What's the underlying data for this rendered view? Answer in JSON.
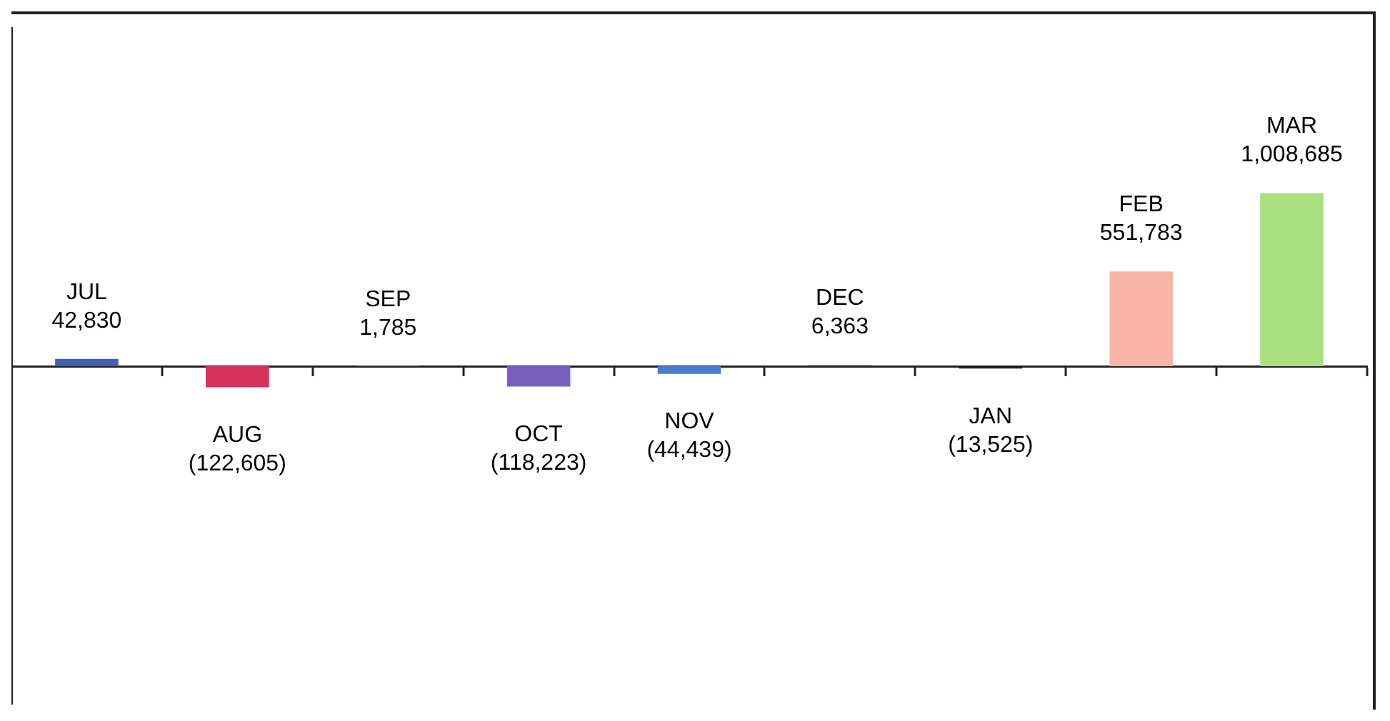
{
  "chart_data": {
    "type": "bar",
    "categories": [
      "JUL",
      "AUG",
      "SEP",
      "OCT",
      "NOV",
      "DEC",
      "JAN",
      "FEB",
      "MAR"
    ],
    "values": [
      42830,
      -122605,
      1785,
      -118223,
      -44439,
      6363,
      -13525,
      551783,
      1008685
    ],
    "value_labels": [
      "42,830",
      "(122,605)",
      "1,785",
      "(118,223)",
      "(44,439)",
      "6,363",
      "(13,525)",
      "551,783",
      "1,008,685"
    ],
    "colors": [
      "#3f5fb0",
      "#d6335a",
      "#7f7f7f",
      "#7a5fc0",
      "#4a7bd0",
      "#404040",
      "#202020",
      "#f8b4a4",
      "#a8e080"
    ],
    "grid": false,
    "legend": false,
    "tick_labels": false
  }
}
